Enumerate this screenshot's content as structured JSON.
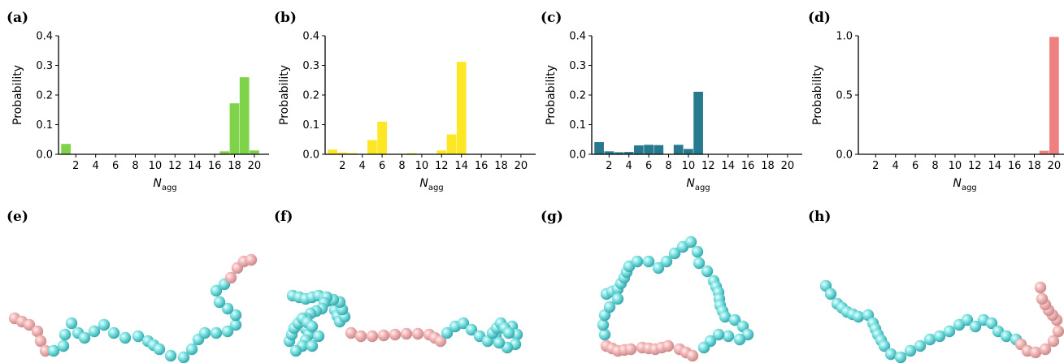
{
  "figure_labels": {
    "bottom": [
      "(e)",
      "(f)",
      "(g)",
      "(h)"
    ]
  },
  "chart_data": [
    {
      "panel": "(a)",
      "type": "bar",
      "color": "#7ed348",
      "xlabel": "N",
      "xlabel_sub": "agg",
      "ylabel": "Probability",
      "ylim": [
        0,
        0.4
      ],
      "yticks": [
        "0.0",
        "0.1",
        "0.2",
        "0.3",
        "0.4"
      ],
      "xticks": [
        "2",
        "4",
        "6",
        "8",
        "10",
        "12",
        "14",
        "16",
        "18",
        "20"
      ],
      "x": [
        1,
        17,
        18,
        19,
        20
      ],
      "values": [
        0.035,
        0.01,
        0.172,
        0.26,
        0.013
      ]
    },
    {
      "panel": "(b)",
      "type": "bar",
      "color": "#fde725",
      "xlabel": "N",
      "xlabel_sub": "agg",
      "ylabel": "Probability",
      "ylim": [
        0,
        0.4
      ],
      "yticks": [
        "0.0",
        "0.1",
        "0.2",
        "0.3",
        "0.4"
      ],
      "xticks": [
        "2",
        "4",
        "6",
        "8",
        "10",
        "12",
        "14",
        "16",
        "18",
        "20"
      ],
      "x": [
        1,
        2,
        3,
        5,
        6,
        9,
        12,
        13,
        14
      ],
      "values": [
        0.016,
        0.006,
        0.004,
        0.048,
        0.11,
        0.004,
        0.013,
        0.067,
        0.312
      ]
    },
    {
      "panel": "(c)",
      "type": "bar",
      "color": "#277a8e",
      "xlabel": "N",
      "xlabel_sub": "agg",
      "ylabel": "Probability",
      "ylim": [
        0,
        0.4
      ],
      "yticks": [
        "0.0",
        "0.1",
        "0.2",
        "0.3",
        "0.4"
      ],
      "xticks": [
        "2",
        "4",
        "6",
        "8",
        "10",
        "12",
        "14",
        "16",
        "18",
        "20"
      ],
      "x": [
        1,
        2,
        3,
        4,
        5,
        6,
        7,
        9,
        10,
        11
      ],
      "values": [
        0.041,
        0.01,
        0.007,
        0.008,
        0.03,
        0.032,
        0.031,
        0.032,
        0.018,
        0.211
      ]
    },
    {
      "panel": "(d)",
      "type": "bar",
      "color": "#f08080",
      "xlabel": "N",
      "xlabel_sub": "agg",
      "ylabel": "Probability",
      "ylim": [
        0,
        1.0
      ],
      "yticks": [
        "0.0",
        "0.5",
        "1.0"
      ],
      "ytick_values": [
        0,
        0.5,
        1.0
      ],
      "xticks": [
        "2",
        "4",
        "6",
        "8",
        "10",
        "12",
        "14",
        "16",
        "18",
        "20"
      ],
      "x": [
        19,
        20
      ],
      "values": [
        0.03,
        0.99
      ]
    }
  ],
  "bead_colors": {
    "body": "#7fe3e3",
    "end": "#f4b6b6"
  }
}
